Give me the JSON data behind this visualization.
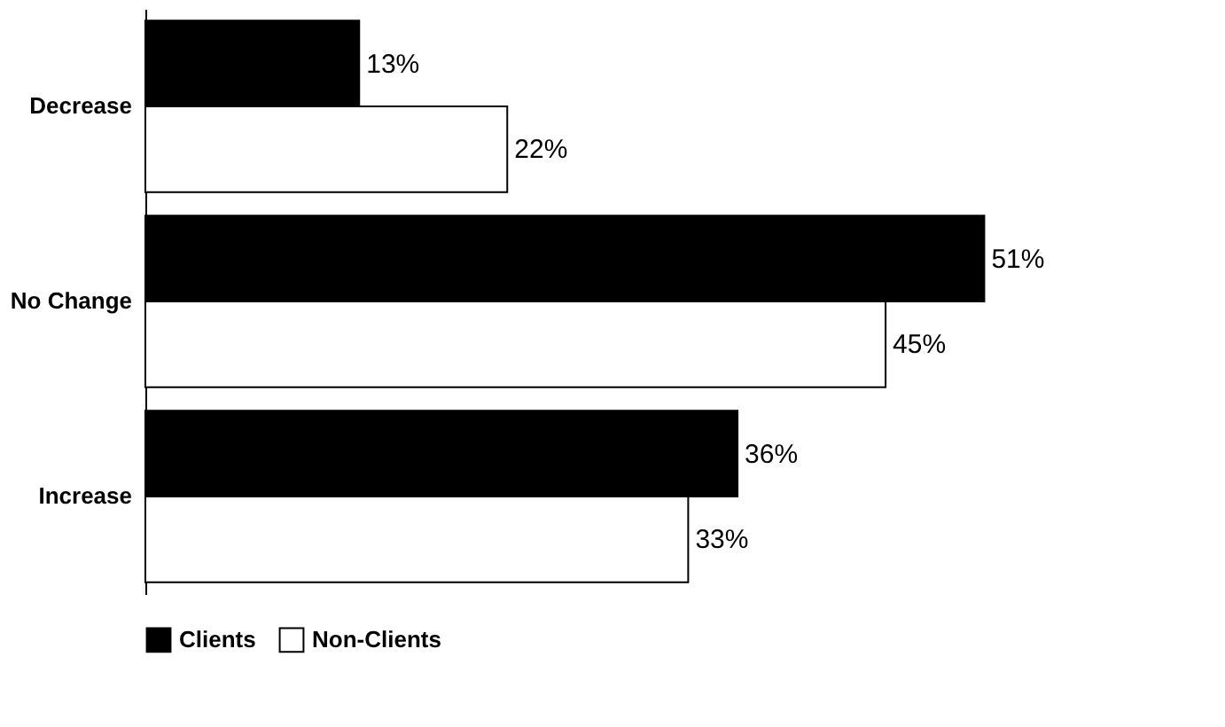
{
  "chart_data": {
    "type": "bar",
    "orientation": "horizontal",
    "categories": [
      "Decrease",
      "No Change",
      "Increase"
    ],
    "series": [
      {
        "name": "Clients",
        "color": "#000000",
        "values": [
          13,
          51,
          36
        ],
        "value_labels": [
          "13%",
          "51%",
          "36%"
        ]
      },
      {
        "name": "Non-Clients",
        "color": "#ffffff",
        "values": [
          22,
          45,
          33
        ],
        "value_labels": [
          "22%",
          "45%",
          "33%"
        ]
      }
    ],
    "legend": "bottom",
    "grid": false
  }
}
